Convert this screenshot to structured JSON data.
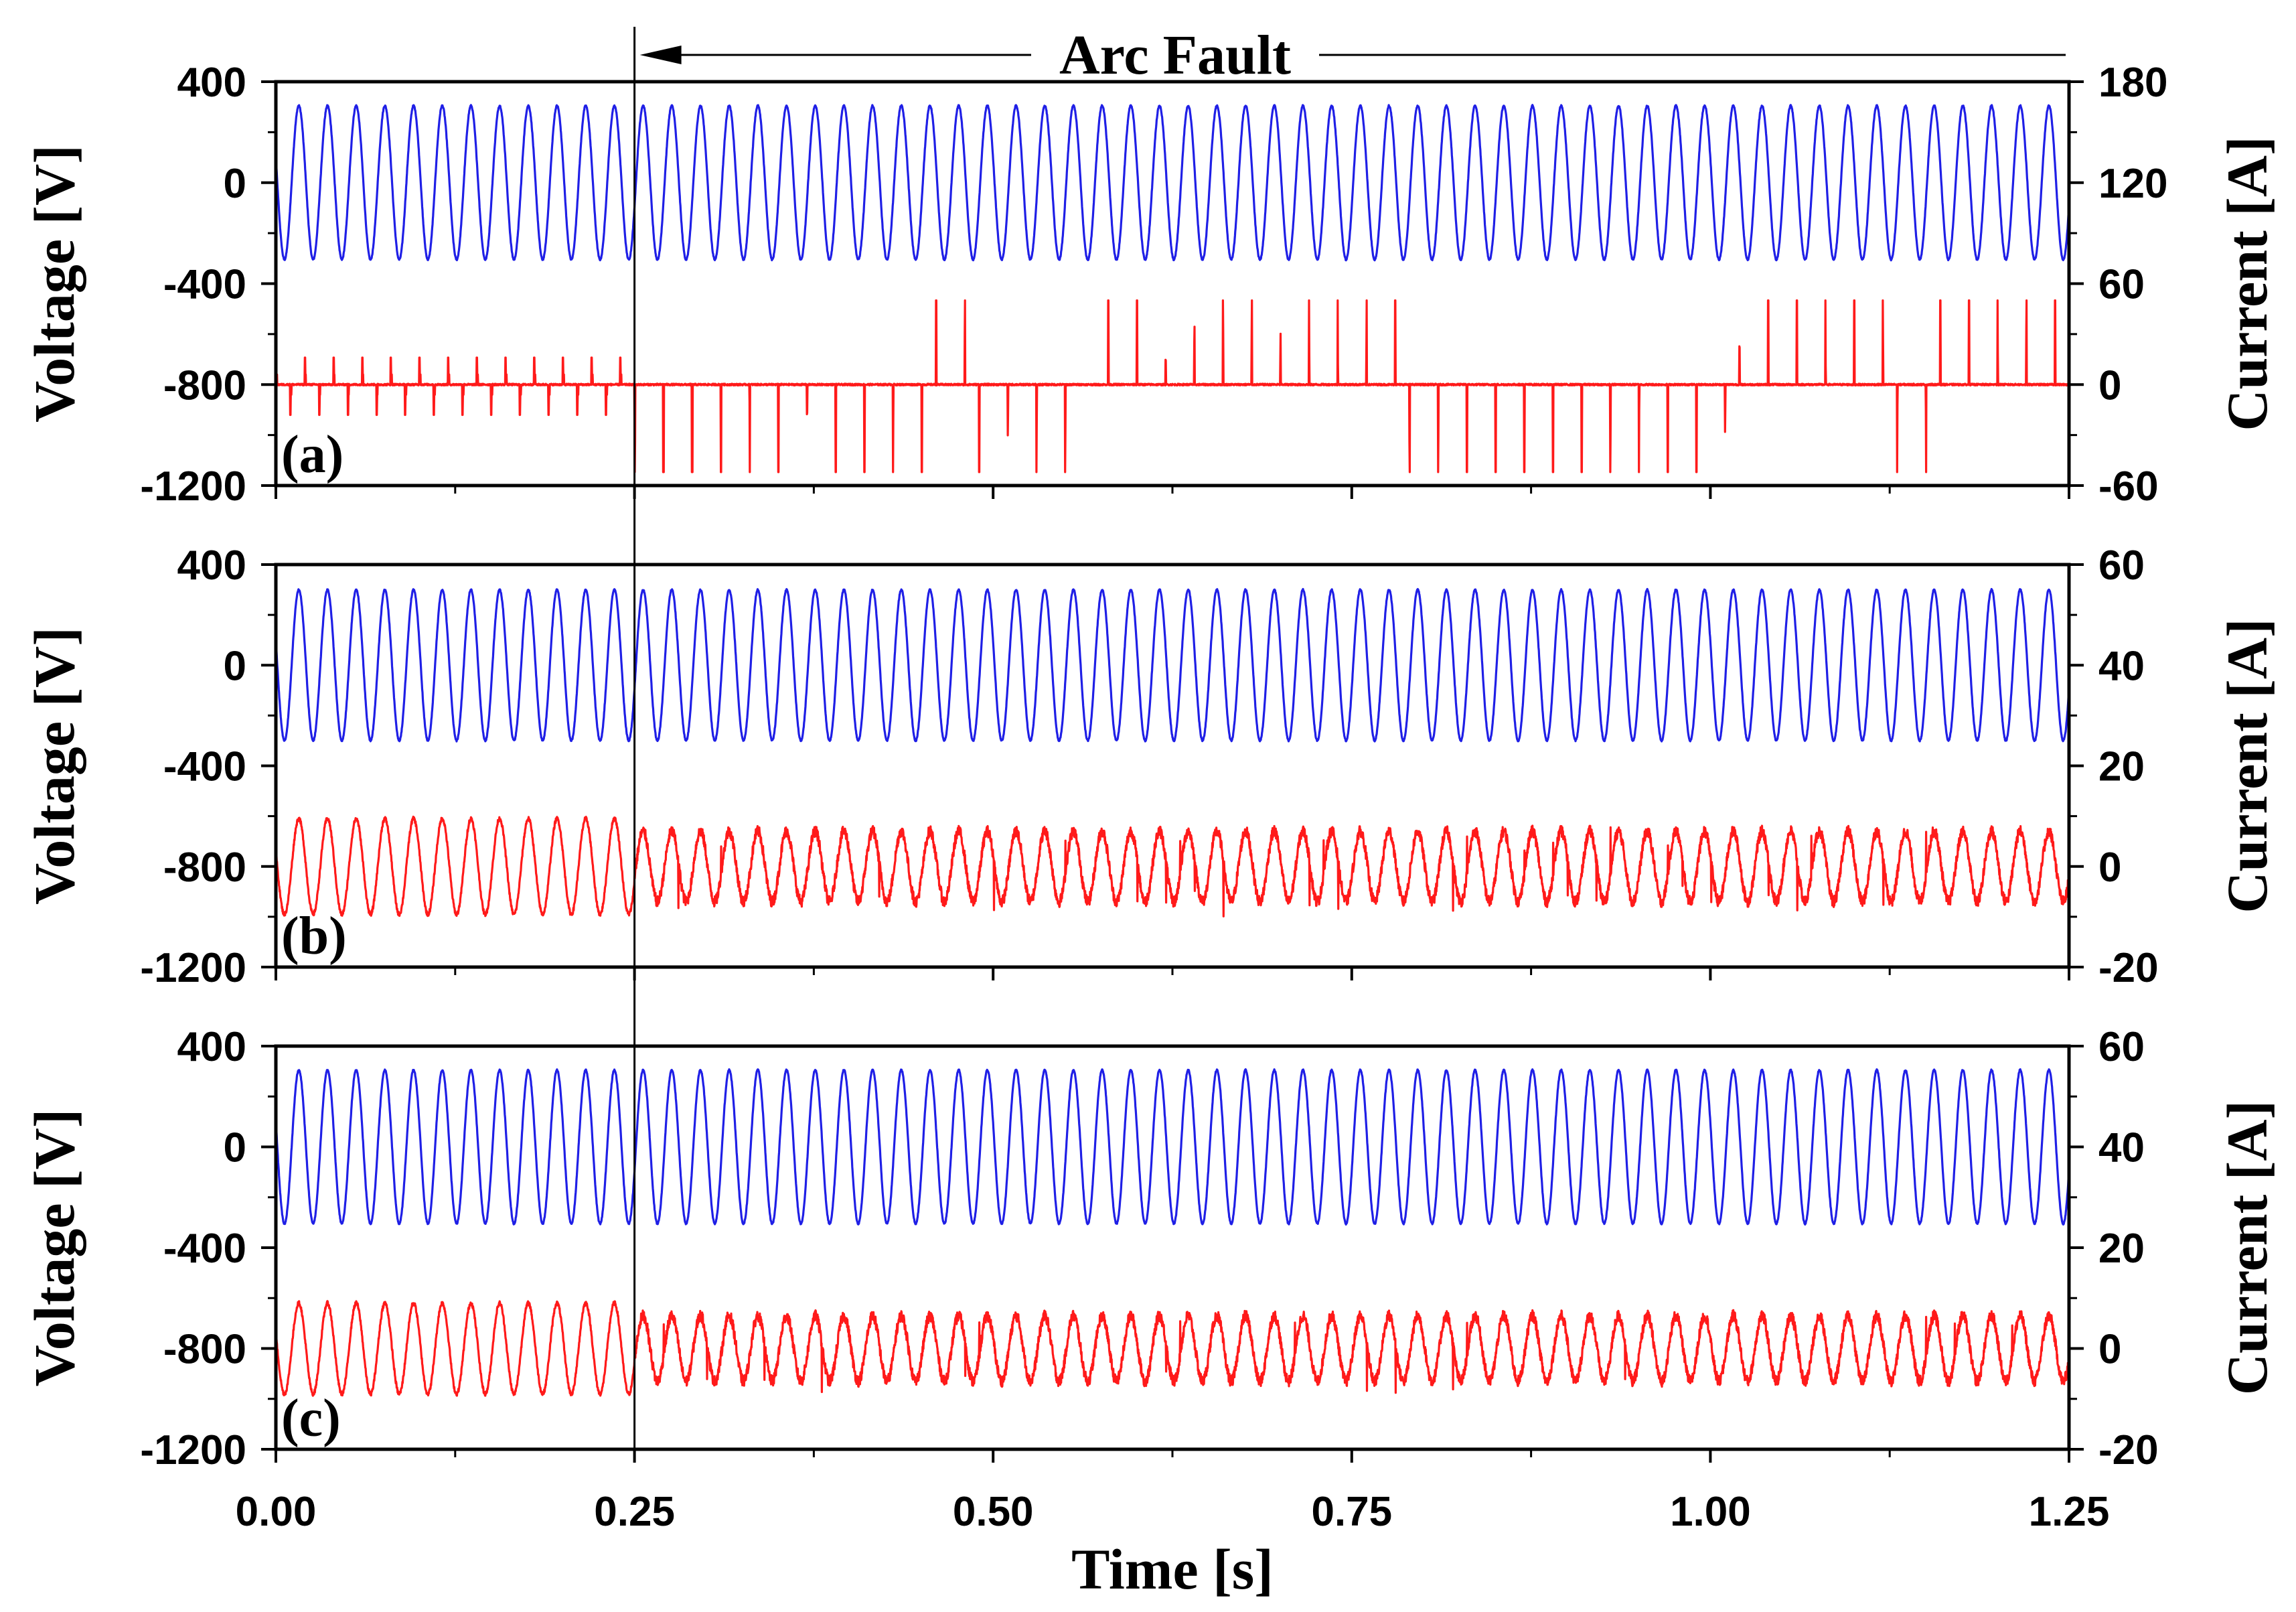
{
  "chart_data": [
    {
      "type": "line",
      "panel_label": "(a)",
      "x_range": [
        0,
        1.25
      ],
      "y_left": {
        "label": "Voltage [V]",
        "range": [
          -1200,
          400
        ],
        "ticks": [
          "400",
          "0",
          "-400",
          "-800",
          "-1200"
        ]
      },
      "y_right": {
        "label": "Current [A]",
        "range": [
          -60,
          180
        ],
        "ticks": [
          "180",
          "120",
          "60",
          "0",
          "-60"
        ]
      },
      "series": [
        {
          "color": "#1f1fe6",
          "axis": "left",
          "kind": "sinusoid",
          "amplitude": 305,
          "offset": 0,
          "frequency_hz": 50
        },
        {
          "color": "#ff1a1a",
          "axis": "right",
          "kind": "pulses",
          "pre_fault": "spikes +16 / -18 A at each half-cycle",
          "post_fault_peak": 50,
          "post_fault_trough": -52,
          "offset": 0
        }
      ]
    },
    {
      "type": "line",
      "panel_label": "(b)",
      "x_range": [
        0,
        1.25
      ],
      "y_left": {
        "label": "Voltage [V]",
        "range": [
          -1200,
          400
        ],
        "ticks": [
          "400",
          "0",
          "-400",
          "-800",
          "-1200"
        ]
      },
      "y_right": {
        "label": "Current [A]",
        "range": [
          -20,
          60
        ],
        "ticks": [
          "60",
          "40",
          "20",
          "0",
          "-20"
        ]
      },
      "series": [
        {
          "color": "#1f1fe6",
          "axis": "left",
          "kind": "sinusoid",
          "amplitude": 300,
          "offset": 0,
          "frequency_hz": 50
        },
        {
          "color": "#ff1a1a",
          "axis": "right",
          "kind": "sinusoid",
          "pre_fault_amplitude": 9.5,
          "post_fault_amplitude": 7,
          "offset": 0,
          "frequency_hz": 50
        }
      ]
    },
    {
      "type": "line",
      "panel_label": "(c)",
      "x_range": [
        0,
        1.25
      ],
      "y_left": {
        "label": "Voltage [V]",
        "range": [
          -1200,
          400
        ],
        "ticks": [
          "400",
          "0",
          "-400",
          "-800",
          "-1200"
        ]
      },
      "y_right": {
        "label": "Current [A]",
        "range": [
          -20,
          60
        ],
        "ticks": [
          "60",
          "40",
          "20",
          "0",
          "-20"
        ]
      },
      "series": [
        {
          "color": "#1f1fe6",
          "axis": "left",
          "kind": "sinusoid",
          "amplitude": 305,
          "offset": 0,
          "frequency_hz": 50
        },
        {
          "color": "#ff1a1a",
          "axis": "right",
          "kind": "sinusoid",
          "pre_fault_amplitude": 9,
          "post_fault_amplitude": 6.5,
          "offset": 0,
          "frequency_hz": 50
        }
      ]
    }
  ],
  "x_axis": {
    "label": "Time [s]",
    "ticks": [
      {
        "value": 0.0,
        "label": "0.00"
      },
      {
        "value": 0.25,
        "label": "0.25"
      },
      {
        "value": 0.5,
        "label": "0.50"
      },
      {
        "value": 0.75,
        "label": "0.75"
      },
      {
        "value": 1.0,
        "label": "1.00"
      },
      {
        "value": 1.25,
        "label": "1.25"
      }
    ]
  },
  "annotation": {
    "text": "Arc Fault",
    "fault_time": 0.25
  }
}
